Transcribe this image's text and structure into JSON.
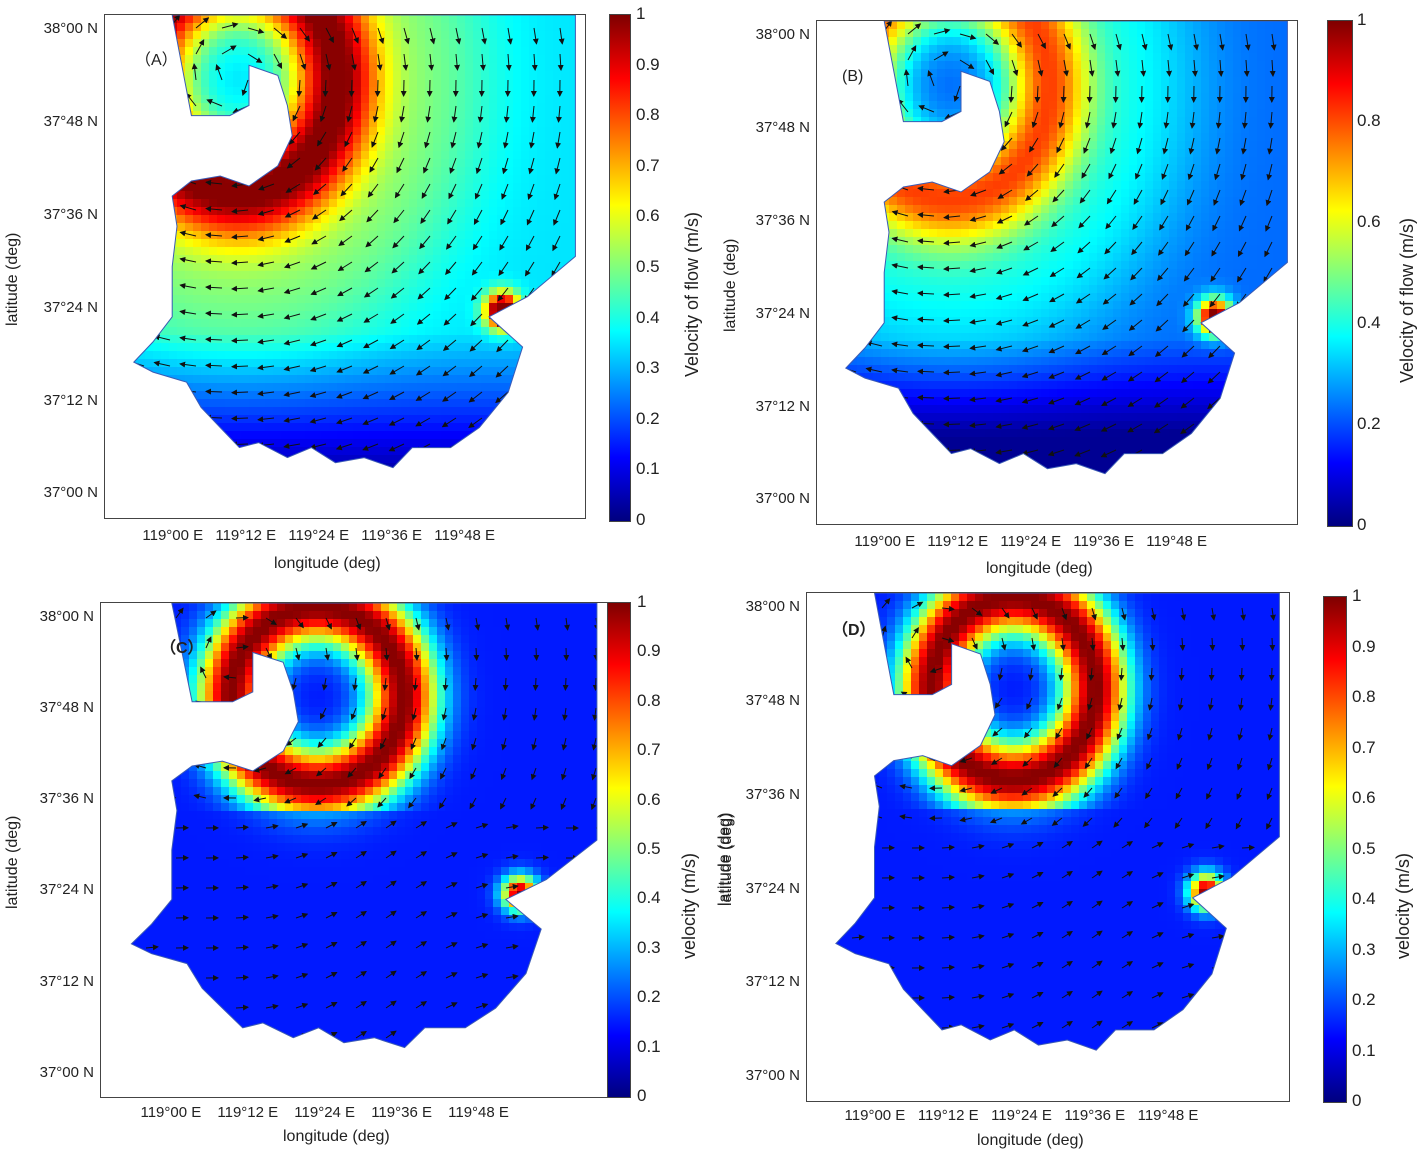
{
  "panels": [
    {
      "tag": "（A）",
      "ylabel": "latitude (deg)",
      "xlabel": "longitude (deg)",
      "cb_label": "Velocity of flow (m/s)",
      "extra_ylabel": "",
      "y_ticks": [
        "38°00 N",
        "37°48 N",
        "37°36 N",
        "37°24 N",
        "37°12 N",
        "37°00 N"
      ],
      "x_ticks": [
        "119°00 E",
        "119°12 E",
        "119°24 E",
        "119°36 E",
        "119°48 E"
      ],
      "cb_ticks": [
        "1",
        "0.9",
        "0.8",
        "0.7",
        "0.6",
        "0.5",
        "0.4",
        "0.3",
        "0.2",
        "0.1",
        "0"
      ]
    },
    {
      "tag": "(B)",
      "ylabel": "latitude (deg)",
      "xlabel": "longitude (deg)",
      "cb_label": "Velocity of flow (m/s)",
      "extra_ylabel": "",
      "y_ticks": [
        "38°00 N",
        "37°48 N",
        "37°36 N",
        "37°24 N",
        "37°12 N",
        "37°00 N"
      ],
      "x_ticks": [
        "119°00 E",
        "119°12 E",
        "119°24 E",
        "119°36 E",
        "119°48 E"
      ],
      "cb_ticks": [
        "1",
        "0.8",
        "0.6",
        "0.4",
        "0.2",
        "0"
      ]
    },
    {
      "tag": "（C）",
      "ylabel": "latitude (deg)",
      "xlabel": "longitude (deg)",
      "cb_label": "velocity (m/s)",
      "extra_ylabel": "",
      "y_ticks": [
        "38°00 N",
        "37°48 N",
        "37°36 N",
        "37°24 N",
        "37°12 N",
        "37°00 N"
      ],
      "x_ticks": [
        "119°00 E",
        "119°12 E",
        "119°24 E",
        "119°36 E",
        "119°48 E"
      ],
      "cb_ticks": [
        "1",
        "0.9",
        "0.8",
        "0.7",
        "0.6",
        "0.5",
        "0.4",
        "0.3",
        "0.2",
        "0.1",
        "0"
      ]
    },
    {
      "tag": "（D）",
      "ylabel": "latitude (deg)",
      "xlabel": "longitude (deg)",
      "cb_label": "velocity (m/s)",
      "extra_ylabel": "latitude (deg)",
      "y_ticks": [
        "38°00 N",
        "37°48 N",
        "37°36 N",
        "37°24 N",
        "37°12 N",
        "37°00 N"
      ],
      "x_ticks": [
        "119°00 E",
        "119°12 E",
        "119°24 E",
        "119°36 E",
        "119°48 E"
      ],
      "cb_ticks": [
        "1",
        "0.9",
        "0.8",
        "0.7",
        "0.6",
        "0.5",
        "0.4",
        "0.3",
        "0.2",
        "0.1",
        "0"
      ]
    }
  ],
  "chart_data": [
    {
      "type": "heatmap",
      "title": "",
      "xlabel": "longitude (deg)",
      "ylabel": "latitude (deg)",
      "colorbar_label": "Velocity of flow (m/s)",
      "colorbar_range": [
        0,
        1
      ],
      "x_ticks": [
        "119°00 E",
        "119°12 E",
        "119°24 E",
        "119°36 E",
        "119°48 E"
      ],
      "y_ticks": [
        "37°00 N",
        "37°12 N",
        "37°24 N",
        "37°36 N",
        "37°48 N",
        "38°00 N"
      ],
      "velocity_max": 0.97,
      "jet_strength": 1.0,
      "vector_field": "arrows"
    },
    {
      "type": "heatmap",
      "title": "",
      "xlabel": "longitude (deg)",
      "ylabel": "latitude (deg)",
      "colorbar_label": "Velocity of flow (m/s)",
      "colorbar_range": [
        0,
        1
      ],
      "x_ticks": [
        "119°00 E",
        "119°12 E",
        "119°24 E",
        "119°36 E",
        "119°48 E"
      ],
      "y_ticks": [
        "37°00 N",
        "37°12 N",
        "37°24 N",
        "37°36 N",
        "37°48 N",
        "38°00 N"
      ],
      "velocity_max": 0.95,
      "jet_strength": 0.85,
      "vector_field": "arrows"
    },
    {
      "type": "heatmap",
      "title": "",
      "xlabel": "longitude (deg)",
      "ylabel": "latitude (deg)",
      "colorbar_label": "velocity (m/s)",
      "colorbar_range": [
        0,
        1
      ],
      "x_ticks": [
        "119°00 E",
        "119°12 E",
        "119°24 E",
        "119°36 E",
        "119°48 E"
      ],
      "y_ticks": [
        "37°00 N",
        "37°12 N",
        "37°24 N",
        "37°36 N",
        "37°48 N",
        "38°00 N"
      ],
      "velocity_max": 1.0,
      "jet_strength": 0.6,
      "vector_field": "arrows"
    },
    {
      "type": "heatmap",
      "title": "",
      "xlabel": "longitude (deg)",
      "ylabel": "latitude (deg)",
      "colorbar_label": "velocity (m/s)",
      "colorbar_range": [
        0,
        1
      ],
      "x_ticks": [
        "119°00 E",
        "119°12 E",
        "119°24 E",
        "119°36 E",
        "119°48 E"
      ],
      "y_ticks": [
        "37°00 N",
        "37°12 N",
        "37°24 N",
        "37°36 N",
        "37°48 N",
        "38°00 N"
      ],
      "velocity_max": 1.0,
      "jet_strength": 0.65,
      "vector_field": "arrows"
    }
  ],
  "colors": {
    "jet": [
      "#00007f",
      "#0000ff",
      "#007fff",
      "#00ffff",
      "#7fff7f",
      "#ffff00",
      "#ff7f00",
      "#ff0000",
      "#7f0000"
    ],
    "land": "#ffffff",
    "arrow": "#111111"
  }
}
